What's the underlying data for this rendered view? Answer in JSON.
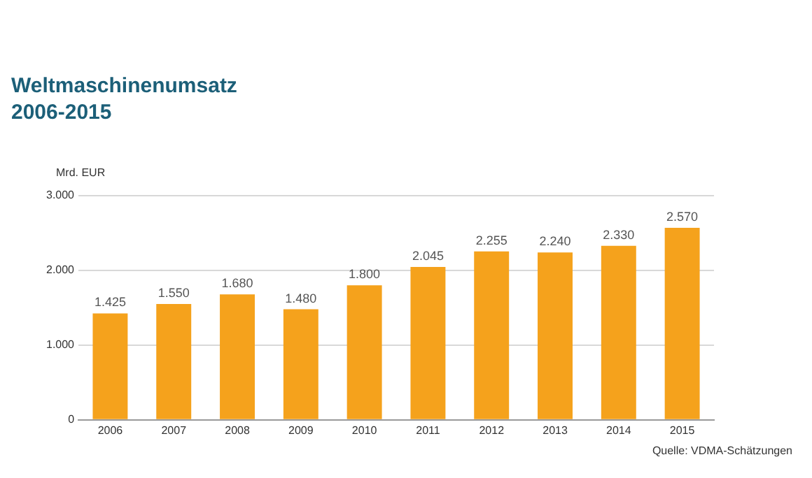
{
  "chart_data": {
    "type": "bar",
    "title": "Weltmaschinenumsatz\n2006-2015",
    "ylabel": "Mrd. EUR",
    "categories": [
      "2006",
      "2007",
      "2008",
      "2009",
      "2010",
      "2011",
      "2012",
      "2013",
      "2014",
      "2015"
    ],
    "values": [
      1425,
      1550,
      1680,
      1480,
      1800,
      2045,
      2255,
      2240,
      2330,
      2570
    ],
    "value_labels": [
      "1.425",
      "1.550",
      "1.680",
      "1.480",
      "1.800",
      "2.045",
      "2.255",
      "2.240",
      "2.330",
      "2.570"
    ],
    "color": "#f5a21c",
    "ylim": [
      0,
      3000
    ],
    "yticks": [
      0,
      {
        "value": 1000,
        "label": "1.000"
      },
      {
        "value": 2000,
        "label": "2.000"
      },
      {
        "value": 3000,
        "label": "3.000"
      }
    ],
    "grid": "y",
    "annotations": [
      "Quelle: VDMA-Schätzungen"
    ]
  }
}
